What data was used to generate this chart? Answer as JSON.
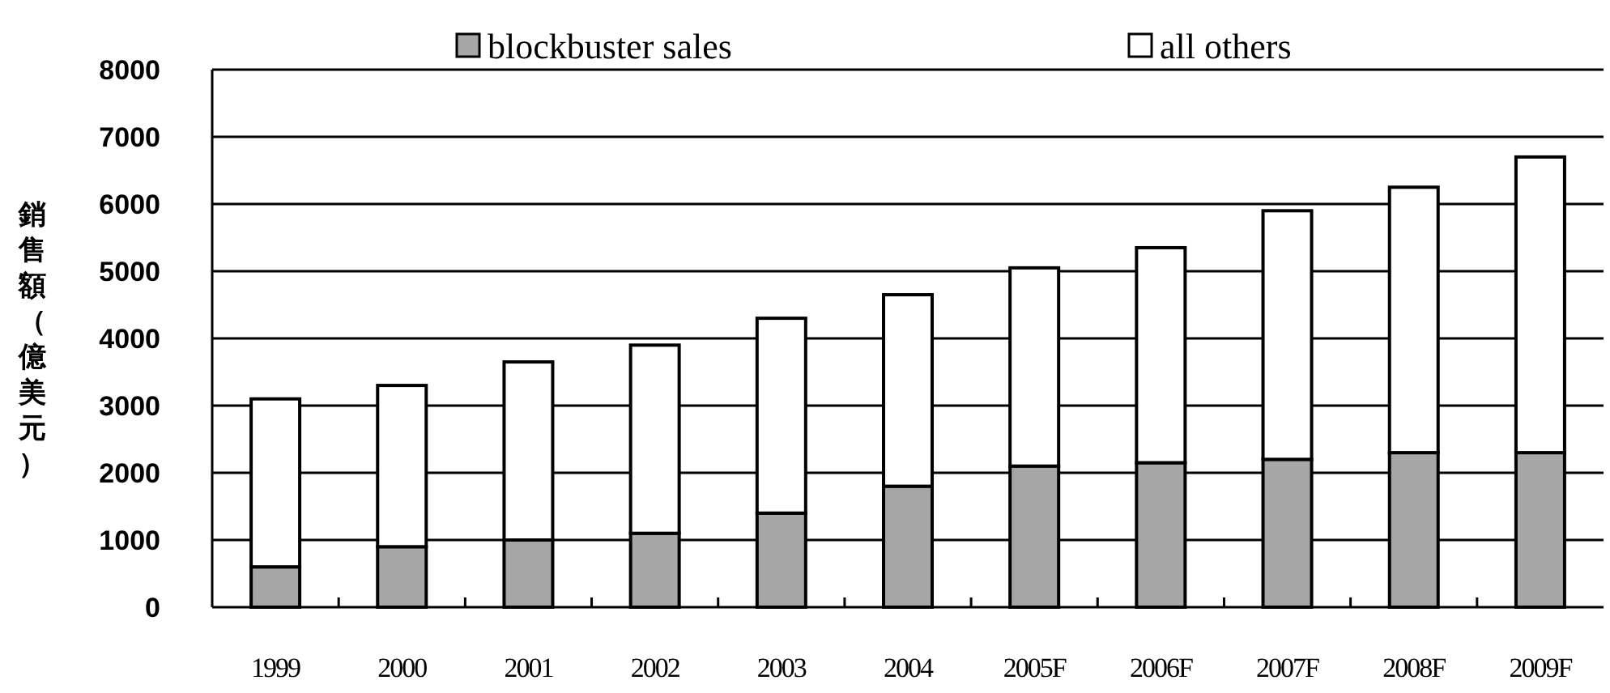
{
  "chart_data": {
    "type": "bar",
    "stacked": true,
    "ylabel": "銷售額（億美元）",
    "categories": [
      "1999",
      "2000",
      "2001",
      "2002",
      "2003",
      "2004",
      "2005F",
      "2006F",
      "2007F",
      "2008F",
      "2009F"
    ],
    "series": [
      {
        "name": "blockbuster sales",
        "color": "#a6a6a6",
        "values": [
          600,
          900,
          1000,
          1100,
          1400,
          1800,
          2100,
          2150,
          2200,
          2300,
          2300
        ]
      },
      {
        "name": "all others",
        "color": "#ffffff",
        "values": [
          2500,
          2400,
          2650,
          2800,
          2900,
          2850,
          2950,
          3200,
          3700,
          3950,
          4400
        ]
      }
    ],
    "ylim": [
      0,
      8000
    ],
    "yticks": [
      0,
      1000,
      2000,
      3000,
      4000,
      5000,
      6000,
      7000,
      8000
    ],
    "grid": "y",
    "legend": "top"
  }
}
